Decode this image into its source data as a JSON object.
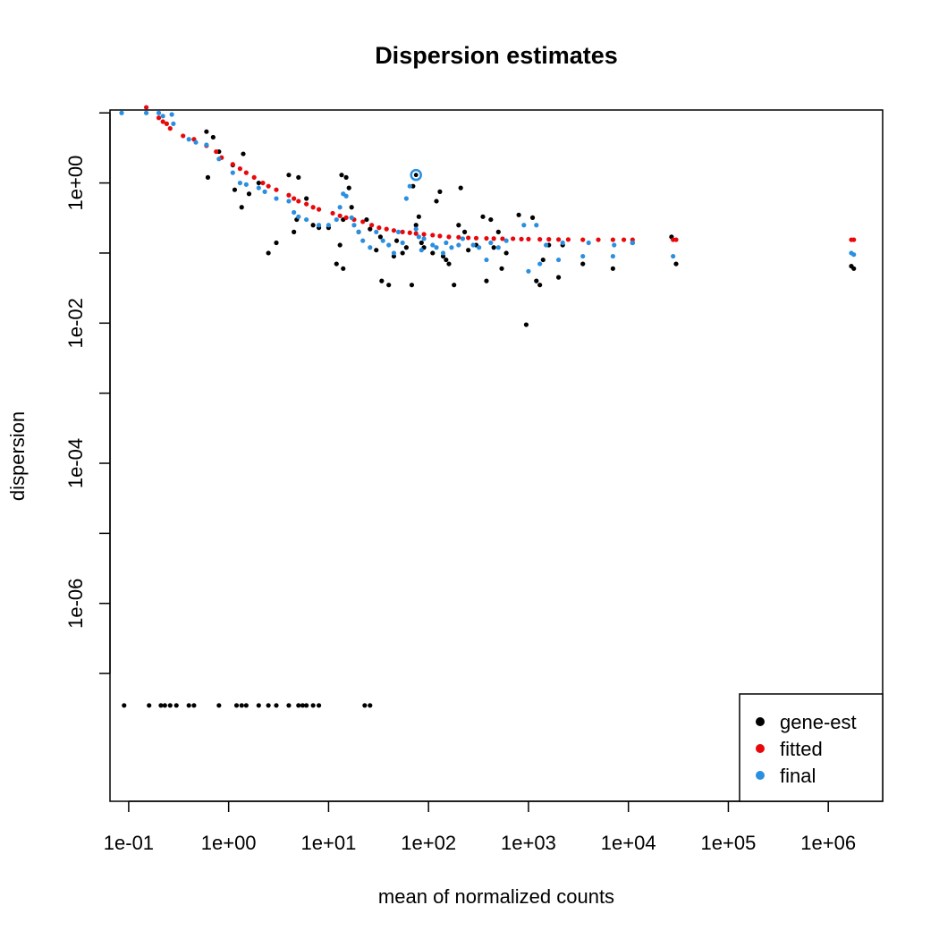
{
  "chart_data": {
    "type": "scatter",
    "title": "Dispersion estimates",
    "xlabel": "mean of normalized counts",
    "ylabel": "dispersion",
    "x_scale": "log10",
    "y_scale": "log10",
    "xlim": [
      0.065,
      3500000
    ],
    "ylim": [
      1.5e-09,
      11
    ],
    "x_ticks": [
      0.1,
      1,
      10,
      100,
      1000,
      10000,
      100000,
      1000000
    ],
    "x_tick_labels": [
      "1e-01",
      "1e+00",
      "1e+01",
      "1e+02",
      "1e+03",
      "1e+04",
      "1e+05",
      "1e+06"
    ],
    "y_ticks": [
      1e-07,
      1e-06,
      1e-05,
      0.0001,
      0.001,
      0.01,
      0.1,
      1,
      10
    ],
    "y_tick_labels": [
      "1e-06",
      "1e-04",
      "1e-02",
      "1e+00"
    ],
    "y_labeled_ticks": [
      1e-06,
      0.0001,
      0.01,
      1
    ],
    "grid": false,
    "legend_position": "bottom-right",
    "colors": {
      "gene-est": "#000000",
      "fitted": "#e8070b",
      "final": "#2b8fe0"
    },
    "series": [
      {
        "name": "gene-est",
        "points": [
          [
            0.09,
            3.5e-08
          ],
          [
            0.16,
            3.5e-08
          ],
          [
            0.21,
            3.5e-08
          ],
          [
            0.23,
            3.5e-08
          ],
          [
            0.26,
            3.5e-08
          ],
          [
            0.3,
            3.5e-08
          ],
          [
            0.4,
            3.5e-08
          ],
          [
            0.45,
            3.5e-08
          ],
          [
            0.8,
            3.5e-08
          ],
          [
            1.2,
            3.5e-08
          ],
          [
            1.35,
            3.5e-08
          ],
          [
            1.5,
            3.5e-08
          ],
          [
            2,
            3.5e-08
          ],
          [
            2.5,
            3.5e-08
          ],
          [
            3,
            3.5e-08
          ],
          [
            4,
            3.5e-08
          ],
          [
            5,
            3.5e-08
          ],
          [
            5.5,
            3.5e-08
          ],
          [
            6,
            3.5e-08
          ],
          [
            7,
            3.5e-08
          ],
          [
            8,
            3.5e-08
          ],
          [
            23,
            3.5e-08
          ],
          [
            26,
            3.5e-08
          ],
          [
            0.6,
            5.4
          ],
          [
            0.7,
            4.5
          ],
          [
            0.8,
            2.8
          ],
          [
            1.1,
            1.8
          ],
          [
            1.4,
            2.6
          ],
          [
            0.62,
            1.2
          ],
          [
            1.15,
            0.8
          ],
          [
            1.6,
            0.7
          ],
          [
            1.35,
            0.45
          ],
          [
            2,
            1
          ],
          [
            2.5,
            0.1
          ],
          [
            3,
            0.14
          ],
          [
            4,
            1.3
          ],
          [
            5,
            1.2
          ],
          [
            6,
            0.6
          ],
          [
            4.8,
            0.3
          ],
          [
            4.5,
            0.2
          ],
          [
            7,
            0.25
          ],
          [
            8,
            0.23
          ],
          [
            10,
            0.23
          ],
          [
            12,
            0.07
          ],
          [
            13,
            0.13
          ],
          [
            14,
            0.06
          ],
          [
            13.5,
            1.3
          ],
          [
            15,
            1.2
          ],
          [
            16,
            0.85
          ],
          [
            14,
            0.3
          ],
          [
            17,
            0.45
          ],
          [
            20,
            0.2
          ],
          [
            24,
            0.3
          ],
          [
            26,
            0.22
          ],
          [
            30,
            0.11
          ],
          [
            33,
            0.17
          ],
          [
            34,
            0.04
          ],
          [
            40,
            0.035
          ],
          [
            45,
            0.09
          ],
          [
            48,
            0.15
          ],
          [
            55,
            0.1
          ],
          [
            60,
            0.12
          ],
          [
            68,
            0.035
          ],
          [
            70,
            0.9
          ],
          [
            75,
            0.25
          ],
          [
            80,
            0.33
          ],
          [
            85,
            0.14
          ],
          [
            90,
            0.12
          ],
          [
            110,
            0.1
          ],
          [
            120,
            0.55
          ],
          [
            130,
            0.75
          ],
          [
            140,
            0.09
          ],
          [
            150,
            0.08
          ],
          [
            160,
            0.07
          ],
          [
            180,
            0.035
          ],
          [
            200,
            0.25
          ],
          [
            210,
            0.85
          ],
          [
            230,
            0.2
          ],
          [
            250,
            0.11
          ],
          [
            300,
            0.13
          ],
          [
            350,
            0.33
          ],
          [
            380,
            0.04
          ],
          [
            420,
            0.3
          ],
          [
            450,
            0.12
          ],
          [
            500,
            0.2
          ],
          [
            540,
            0.06
          ],
          [
            600,
            0.1
          ],
          [
            800,
            0.35
          ],
          [
            950,
            0.0095
          ],
          [
            1100,
            0.32
          ],
          [
            1200,
            0.04
          ],
          [
            1300,
            0.035
          ],
          [
            1400,
            0.08
          ],
          [
            1600,
            0.13
          ],
          [
            2000,
            0.045
          ],
          [
            2200,
            0.13
          ],
          [
            3500,
            0.07
          ],
          [
            7000,
            0.06
          ],
          [
            11000,
            0.14
          ],
          [
            27000,
            0.17
          ],
          [
            30000,
            0.07
          ],
          [
            1700000,
            0.065
          ],
          [
            1800000,
            0.06
          ]
        ]
      },
      {
        "name": "fitted",
        "points": [
          [
            0.15,
            12
          ],
          [
            0.2,
            8.5
          ],
          [
            0.22,
            7.5
          ],
          [
            0.24,
            7
          ],
          [
            0.26,
            6
          ],
          [
            0.35,
            4.7
          ],
          [
            0.45,
            4.2
          ],
          [
            0.6,
            3.4
          ],
          [
            0.75,
            2.8
          ],
          [
            0.85,
            2.3
          ],
          [
            1.1,
            1.85
          ],
          [
            1.3,
            1.6
          ],
          [
            1.5,
            1.4
          ],
          [
            1.8,
            1.2
          ],
          [
            2.2,
            1
          ],
          [
            2.5,
            0.9
          ],
          [
            3,
            0.8
          ],
          [
            4,
            0.67
          ],
          [
            4.5,
            0.6
          ],
          [
            5,
            0.55
          ],
          [
            6,
            0.5
          ],
          [
            7,
            0.45
          ],
          [
            8,
            0.42
          ],
          [
            11,
            0.37
          ],
          [
            13,
            0.34
          ],
          [
            15,
            0.32
          ],
          [
            18,
            0.3
          ],
          [
            22,
            0.28
          ],
          [
            27,
            0.25
          ],
          [
            32,
            0.23
          ],
          [
            38,
            0.22
          ],
          [
            45,
            0.21
          ],
          [
            55,
            0.2
          ],
          [
            65,
            0.195
          ],
          [
            75,
            0.19
          ],
          [
            90,
            0.185
          ],
          [
            110,
            0.18
          ],
          [
            130,
            0.175
          ],
          [
            160,
            0.17
          ],
          [
            200,
            0.168
          ],
          [
            250,
            0.165
          ],
          [
            300,
            0.163
          ],
          [
            380,
            0.162
          ],
          [
            450,
            0.161
          ],
          [
            550,
            0.16
          ],
          [
            700,
            0.16
          ],
          [
            850,
            0.158
          ],
          [
            1000,
            0.158
          ],
          [
            1300,
            0.157
          ],
          [
            1600,
            0.157
          ],
          [
            2000,
            0.156
          ],
          [
            2500,
            0.156
          ],
          [
            3500,
            0.155
          ],
          [
            5000,
            0.155
          ],
          [
            7000,
            0.155
          ],
          [
            9000,
            0.155
          ],
          [
            11000,
            0.155
          ],
          [
            28000,
            0.155
          ],
          [
            30000,
            0.155
          ],
          [
            1700000,
            0.155
          ],
          [
            1800000,
            0.155
          ]
        ]
      },
      {
        "name": "final",
        "points": [
          [
            0.085,
            10
          ],
          [
            0.15,
            10
          ],
          [
            0.2,
            10
          ],
          [
            0.22,
            9
          ],
          [
            0.27,
            9.5
          ],
          [
            0.28,
            7
          ],
          [
            0.4,
            4.2
          ],
          [
            0.47,
            3.8
          ],
          [
            0.6,
            3.5
          ],
          [
            0.8,
            2.2
          ],
          [
            1.1,
            1.4
          ],
          [
            1.3,
            1
          ],
          [
            1.5,
            0.95
          ],
          [
            2,
            0.85
          ],
          [
            2.3,
            0.75
          ],
          [
            3,
            0.6
          ],
          [
            4,
            0.55
          ],
          [
            4.5,
            0.38
          ],
          [
            5,
            0.33
          ],
          [
            6,
            0.3
          ],
          [
            8,
            0.25
          ],
          [
            10,
            0.25
          ],
          [
            12,
            0.3
          ],
          [
            13,
            0.45
          ],
          [
            14,
            0.7
          ],
          [
            15,
            0.65
          ],
          [
            17,
            0.32
          ],
          [
            18,
            0.25
          ],
          [
            20,
            0.2
          ],
          [
            22,
            0.15
          ],
          [
            26,
            0.12
          ],
          [
            30,
            0.2
          ],
          [
            35,
            0.15
          ],
          [
            40,
            0.13
          ],
          [
            45,
            0.1
          ],
          [
            50,
            0.2
          ],
          [
            55,
            0.14
          ],
          [
            60,
            0.6
          ],
          [
            65,
            0.9
          ],
          [
            75,
            0.22
          ],
          [
            80,
            0.17
          ],
          [
            85,
            0.11
          ],
          [
            90,
            0.16
          ],
          [
            110,
            0.13
          ],
          [
            120,
            0.12
          ],
          [
            140,
            0.1
          ],
          [
            150,
            0.14
          ],
          [
            170,
            0.12
          ],
          [
            200,
            0.13
          ],
          [
            220,
            0.16
          ],
          [
            280,
            0.13
          ],
          [
            320,
            0.12
          ],
          [
            380,
            0.08
          ],
          [
            420,
            0.14
          ],
          [
            500,
            0.12
          ],
          [
            600,
            0.15
          ],
          [
            900,
            0.25
          ],
          [
            1000,
            0.055
          ],
          [
            1200,
            0.25
          ],
          [
            1300,
            0.07
          ],
          [
            1500,
            0.13
          ],
          [
            2000,
            0.08
          ],
          [
            2200,
            0.14
          ],
          [
            3500,
            0.09
          ],
          [
            4000,
            0.14
          ],
          [
            7000,
            0.09
          ],
          [
            7200,
            0.13
          ],
          [
            11000,
            0.14
          ],
          [
            28000,
            0.09
          ],
          [
            1700000,
            0.1
          ],
          [
            1800000,
            0.095
          ]
        ]
      }
    ],
    "outlier": {
      "x": 75,
      "y": 1.3
    }
  }
}
